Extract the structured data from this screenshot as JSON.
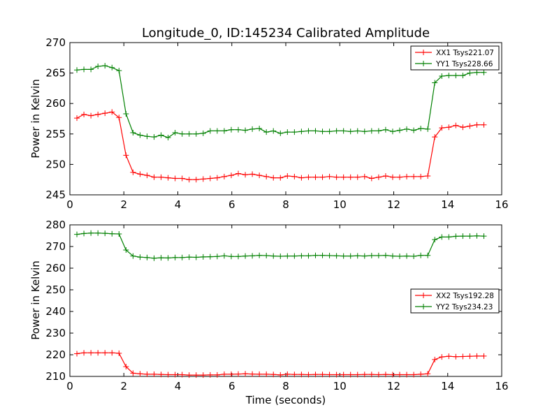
{
  "chart_data": [
    {
      "type": "line",
      "title": "Longitude_0, ID:145234 Calibrated Amplitude",
      "xlabel": "",
      "ylabel": "Power in Kelvin",
      "xlim": [
        0,
        16
      ],
      "ylim": [
        245,
        270
      ],
      "xticks": [
        "0",
        "2",
        "4",
        "6",
        "8",
        "10",
        "12",
        "14",
        "16"
      ],
      "yticks": [
        "245",
        "250",
        "255",
        "260",
        "265",
        "270"
      ],
      "grid": false,
      "legend_position": "top-right",
      "marker": "plus",
      "x": [
        0.26,
        0.52,
        0.78,
        1.04,
        1.3,
        1.56,
        1.82,
        2.08,
        2.34,
        2.6,
        2.86,
        3.12,
        3.38,
        3.64,
        3.9,
        4.16,
        4.42,
        4.68,
        4.94,
        5.2,
        5.46,
        5.72,
        5.98,
        6.24,
        6.5,
        6.76,
        7.02,
        7.28,
        7.54,
        7.8,
        8.06,
        8.32,
        8.58,
        8.84,
        9.1,
        9.36,
        9.62,
        9.88,
        10.14,
        10.4,
        10.66,
        10.92,
        11.18,
        11.44,
        11.7,
        11.96,
        12.22,
        12.48,
        12.74,
        13.0,
        13.26,
        13.52,
        13.78,
        14.04,
        14.3,
        14.56,
        14.82,
        15.08,
        15.34
      ],
      "series": [
        {
          "name": "XX1 Tsys221.07",
          "color": "#ff0000",
          "values": [
            257.6,
            258.2,
            258.0,
            258.2,
            258.4,
            258.6,
            257.7,
            251.5,
            248.7,
            248.4,
            248.2,
            247.9,
            247.9,
            247.8,
            247.7,
            247.7,
            247.5,
            247.5,
            247.6,
            247.7,
            247.8,
            248.0,
            248.2,
            248.5,
            248.3,
            248.4,
            248.2,
            248.0,
            247.8,
            247.8,
            248.1,
            248.0,
            247.8,
            247.9,
            247.9,
            247.9,
            248.0,
            247.9,
            247.9,
            247.9,
            247.9,
            248.0,
            247.7,
            247.9,
            248.1,
            247.9,
            247.9,
            248.0,
            248.0,
            248.0,
            248.1,
            254.5,
            256.0,
            256.1,
            256.4,
            256.1,
            256.3,
            256.5,
            256.5
          ]
        },
        {
          "name": "YY1 Tsys228.66",
          "color": "#008000",
          "values": [
            265.5,
            265.6,
            265.6,
            266.1,
            266.2,
            265.9,
            265.4,
            258.3,
            255.2,
            254.8,
            254.6,
            254.5,
            254.8,
            254.4,
            255.2,
            255.0,
            255.0,
            255.0,
            255.1,
            255.5,
            255.5,
            255.5,
            255.7,
            255.7,
            255.6,
            255.8,
            255.9,
            255.3,
            255.5,
            255.1,
            255.3,
            255.3,
            255.4,
            255.5,
            255.5,
            255.4,
            255.4,
            255.5,
            255.5,
            255.4,
            255.5,
            255.4,
            255.5,
            255.5,
            255.7,
            255.4,
            255.6,
            255.8,
            255.6,
            255.9,
            255.8,
            263.4,
            264.5,
            264.6,
            264.6,
            264.6,
            265.0,
            265.1,
            265.1
          ]
        }
      ]
    },
    {
      "type": "line",
      "title": "",
      "xlabel": "Time (seconds)",
      "ylabel": "Power in Kelvin",
      "xlim": [
        0,
        16
      ],
      "ylim": [
        210,
        280
      ],
      "xticks": [
        "0",
        "2",
        "4",
        "6",
        "8",
        "10",
        "12",
        "14",
        "16"
      ],
      "yticks": [
        "210",
        "220",
        "230",
        "240",
        "250",
        "260",
        "270",
        "280"
      ],
      "grid": false,
      "legend_position": "center-right",
      "marker": "plus",
      "x": [
        0.26,
        0.52,
        0.78,
        1.04,
        1.3,
        1.56,
        1.82,
        2.08,
        2.34,
        2.6,
        2.86,
        3.12,
        3.38,
        3.64,
        3.9,
        4.16,
        4.42,
        4.68,
        4.94,
        5.2,
        5.46,
        5.72,
        5.98,
        6.24,
        6.5,
        6.76,
        7.02,
        7.28,
        7.54,
        7.8,
        8.06,
        8.32,
        8.58,
        8.84,
        9.1,
        9.36,
        9.62,
        9.88,
        10.14,
        10.4,
        10.66,
        10.92,
        11.18,
        11.44,
        11.7,
        11.96,
        12.22,
        12.48,
        12.74,
        13.0,
        13.26,
        13.52,
        13.78,
        14.04,
        14.3,
        14.56,
        14.82,
        15.08,
        15.34
      ],
      "series": [
        {
          "name": "XX2 Tsys192.28",
          "color": "#ff0000",
          "values": [
            220.5,
            220.9,
            220.9,
            220.9,
            220.9,
            220.9,
            220.7,
            214.5,
            211.5,
            211.2,
            211.0,
            211.0,
            210.9,
            210.8,
            210.8,
            210.8,
            210.6,
            210.6,
            210.6,
            210.7,
            210.7,
            211.0,
            211.0,
            211.1,
            211.2,
            211.1,
            211.0,
            211.0,
            210.9,
            210.7,
            211.0,
            210.9,
            210.9,
            210.8,
            210.9,
            210.9,
            210.8,
            210.8,
            210.8,
            210.8,
            210.8,
            210.9,
            210.9,
            210.8,
            210.9,
            210.8,
            210.8,
            210.8,
            210.8,
            211.0,
            211.2,
            217.8,
            219.0,
            219.3,
            219.1,
            219.2,
            219.3,
            219.4,
            219.4
          ]
        },
        {
          "name": "YY2 Tsys234.23",
          "color": "#008000",
          "values": [
            275.6,
            276.0,
            276.2,
            276.2,
            276.1,
            275.9,
            275.8,
            268.4,
            265.6,
            265.1,
            264.9,
            264.6,
            264.8,
            264.7,
            264.9,
            264.9,
            265.1,
            265.0,
            265.2,
            265.3,
            265.4,
            265.7,
            265.4,
            265.4,
            265.6,
            265.7,
            265.9,
            265.8,
            265.6,
            265.5,
            265.6,
            265.6,
            265.7,
            265.7,
            265.9,
            265.9,
            265.8,
            265.7,
            265.6,
            265.6,
            265.7,
            265.6,
            265.8,
            265.8,
            265.9,
            265.6,
            265.5,
            265.6,
            265.5,
            265.9,
            265.9,
            273.2,
            274.4,
            274.4,
            274.7,
            274.8,
            274.8,
            274.9,
            274.8
          ]
        }
      ]
    }
  ]
}
